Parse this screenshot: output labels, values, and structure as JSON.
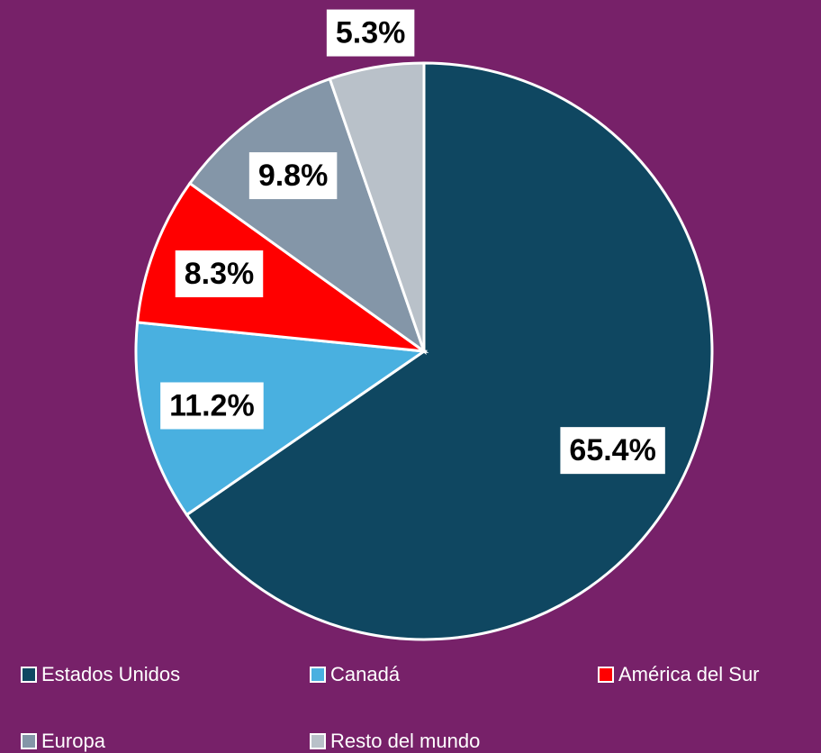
{
  "chart_data": {
    "type": "pie",
    "categories": [
      "Estados Unidos",
      "Canadá",
      "América del Sur",
      "Europa",
      "Resto del mundo"
    ],
    "values": [
      65.4,
      11.2,
      8.3,
      9.8,
      5.3
    ],
    "value_labels": [
      "65.4%",
      "11.2%",
      "8.3%",
      "9.8%",
      "5.3%"
    ],
    "colors": [
      "#0f4761",
      "#49b0e0",
      "#ff0000",
      "#8496a8",
      "#b9c1c9"
    ],
    "legend": "bottom"
  }
}
